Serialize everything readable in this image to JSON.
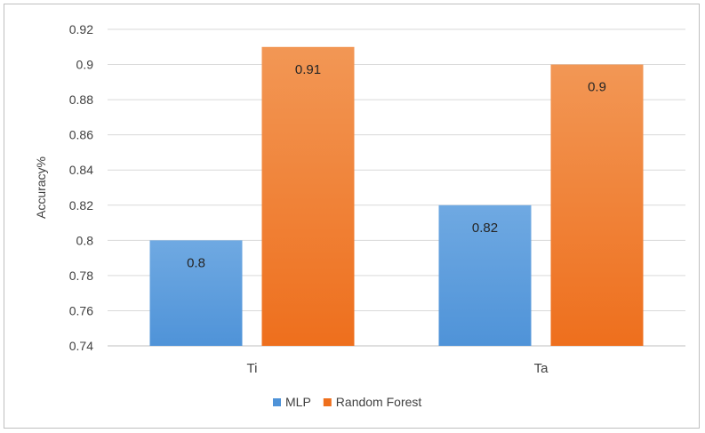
{
  "chart_data": {
    "type": "bar",
    "title": "",
    "xlabel": "",
    "ylabel": "Accuracy%",
    "categories": [
      "Ti",
      "Ta"
    ],
    "series": [
      {
        "name": "MLP",
        "values": [
          0.8,
          0.82
        ],
        "color": "#4f93d8",
        "color_light": "#6fa9e2"
      },
      {
        "name": "Random Forest",
        "values": [
          0.91,
          0.9
        ],
        "color": "#ee6f1d",
        "color_light": "#f29755"
      }
    ],
    "data_labels": [
      [
        "0.8",
        "0.82"
      ],
      [
        "0.91",
        "0.9"
      ]
    ],
    "ylim": [
      0.74,
      0.92
    ],
    "yticks": [
      0.74,
      0.76,
      0.78,
      0.8,
      0.82,
      0.84,
      0.86,
      0.88,
      0.9,
      0.92
    ],
    "ytick_labels": [
      "0.74",
      "0.76",
      "0.78",
      "0.8",
      "0.82",
      "0.84",
      "0.86",
      "0.88",
      "0.9",
      "0.92"
    ],
    "grid": true,
    "legend_position": "bottom"
  }
}
